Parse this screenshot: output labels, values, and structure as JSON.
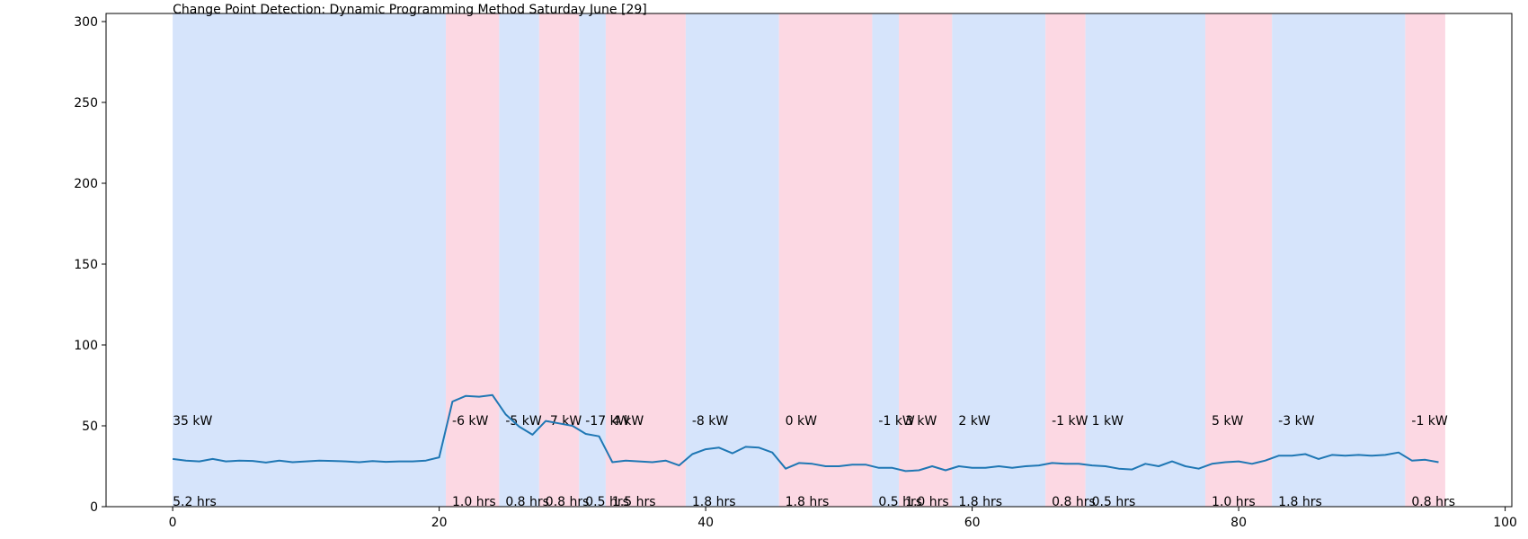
{
  "chart_data": {
    "type": "line",
    "title": "Change Point Detection: Dynamic Programming Method Saturday June [29]",
    "xlabel": "",
    "ylabel": "",
    "xlim": [
      -5,
      100.5
    ],
    "ylim": [
      0,
      305
    ],
    "xticks": [
      0,
      20,
      40,
      60,
      80,
      100
    ],
    "yticks": [
      0,
      50,
      100,
      150,
      200,
      250,
      300
    ],
    "grid": false,
    "colors": {
      "line": "#1f77b4",
      "blue_band": "#d6e4fb",
      "pink_band": "#fcd8e3"
    },
    "segments": [
      {
        "start": 0,
        "end": 20.5,
        "band": "blue",
        "delta": "35 kW",
        "duration": "5.2 hrs"
      },
      {
        "start": 20.5,
        "end": 24.5,
        "band": "pink",
        "delta": "-6 kW",
        "duration": "1.0 hrs"
      },
      {
        "start": 24.5,
        "end": 27.5,
        "band": "blue",
        "delta": "-5 kW",
        "duration": "0.8 hrs"
      },
      {
        "start": 27.5,
        "end": 30.5,
        "band": "pink",
        "delta": "-7 kW",
        "duration": "0.8 hrs"
      },
      {
        "start": 30.5,
        "end": 32.5,
        "band": "blue",
        "delta": "-17 kW",
        "duration": "0.5 hrs"
      },
      {
        "start": 32.5,
        "end": 38.5,
        "band": "pink",
        "delta": "4 kW",
        "duration": "1.5 hrs"
      },
      {
        "start": 38.5,
        "end": 45.5,
        "band": "blue",
        "delta": "-8 kW",
        "duration": "1.8 hrs"
      },
      {
        "start": 45.5,
        "end": 52.5,
        "band": "pink",
        "delta": "0 kW",
        "duration": "1.8 hrs"
      },
      {
        "start": 52.5,
        "end": 54.5,
        "band": "blue",
        "delta": "-1 kW",
        "duration": "0.5 hrs"
      },
      {
        "start": 54.5,
        "end": 58.5,
        "band": "pink",
        "delta": "3 kW",
        "duration": "1.0 hrs"
      },
      {
        "start": 58.5,
        "end": 65.5,
        "band": "blue",
        "delta": "2 kW",
        "duration": "1.8 hrs"
      },
      {
        "start": 65.5,
        "end": 68.5,
        "band": "pink",
        "delta": "-1 kW",
        "duration": "0.8 hrs"
      },
      {
        "start": 68.5,
        "end": 77.5,
        "band": "blue",
        "delta": "1 kW",
        "duration": "0.5 hrs"
      },
      {
        "start": 77.5,
        "end": 82.5,
        "band": "pink",
        "delta": "5 kW",
        "duration": "1.0 hrs"
      },
      {
        "start": 82.5,
        "end": 92.5,
        "band": "blue",
        "delta": "-3 kW",
        "duration": "1.8 hrs"
      },
      {
        "start": 92.5,
        "end": 95.5,
        "band": "pink",
        "delta": "-1 kW",
        "duration": "0.8 hrs"
      }
    ],
    "series": [
      {
        "x": [
          0,
          1,
          2,
          3,
          4,
          5,
          6,
          7,
          8,
          9,
          10,
          11,
          12,
          13,
          14,
          15,
          16,
          17,
          18,
          19,
          20,
          21,
          22,
          23,
          24,
          25,
          26,
          27,
          28,
          29,
          30,
          31,
          32,
          33,
          34,
          35,
          36,
          37,
          38,
          39,
          40,
          41,
          42,
          43,
          44,
          45,
          46,
          47,
          48,
          49,
          50,
          51,
          52,
          53,
          54,
          55,
          56,
          57,
          58,
          59,
          60,
          61,
          62,
          63,
          64,
          65,
          66,
          67,
          68,
          69,
          70,
          71,
          72,
          73,
          74,
          75,
          76,
          77,
          78,
          79,
          80,
          81,
          82,
          83,
          84,
          85,
          86,
          87,
          88,
          89,
          90,
          91,
          92,
          93,
          94,
          95
        ],
        "values": [
          29.5,
          28.5,
          28,
          29.5,
          28,
          28.5,
          28.3,
          27.3,
          28.5,
          27.5,
          28,
          28.5,
          28.3,
          28,
          27.5,
          28.2,
          27.7,
          28,
          28,
          28.5,
          30.5,
          65,
          68.5,
          68,
          69,
          57,
          49.5,
          44.5,
          53,
          51.5,
          50,
          45,
          43.5,
          27.5,
          28.5,
          28,
          27.5,
          28.5,
          25.5,
          32.5,
          35.5,
          36.5,
          33,
          37,
          36.5,
          33.5,
          23.5,
          27,
          26.5,
          25,
          25,
          26,
          26,
          24,
          24,
          22,
          22.5,
          25,
          22.5,
          25,
          24,
          24,
          25,
          24,
          25,
          25.5,
          27,
          26.5,
          26.5,
          25.5,
          25,
          23.5,
          23,
          26.5,
          25,
          28,
          25,
          23.5,
          26.5,
          27.5,
          28,
          26.5,
          28.5,
          31.5,
          31.5,
          32.5,
          29.5,
          32,
          31.5,
          32,
          31.5,
          32,
          33.5,
          28.5,
          29,
          27.5
        ]
      }
    ]
  }
}
